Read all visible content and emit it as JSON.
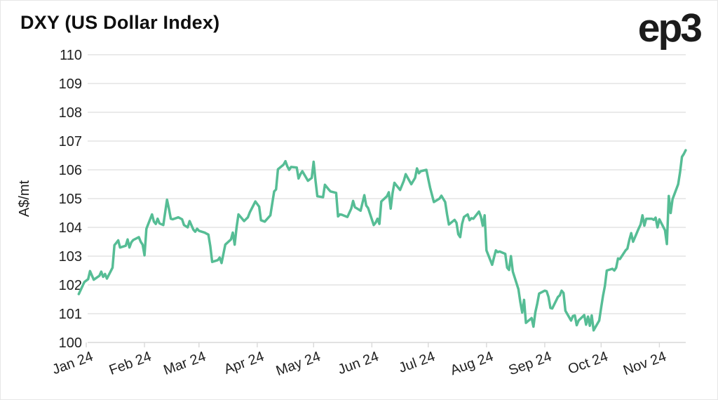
{
  "header": {
    "title": "DXY (US Dollar Index)",
    "logo": "ep3"
  },
  "colors": {
    "line": "#56bd95",
    "gridline": "#e3e3e3",
    "axis": "#d9d9d9",
    "text": "#1f1f1f"
  },
  "chart_data": {
    "type": "line",
    "title": "DXY (US Dollar Index)",
    "xlabel": "",
    "ylabel": "A$/mt",
    "ylim": [
      100,
      110
    ],
    "grid": "horizontal",
    "legend": "none",
    "y_ticks": [
      100,
      101,
      102,
      103,
      104,
      105,
      106,
      107,
      108,
      109,
      110
    ],
    "x_ticks": [
      {
        "label": "Jan 24",
        "day": 0
      },
      {
        "label": "Feb 24",
        "day": 31
      },
      {
        "label": "Mar 24",
        "day": 60
      },
      {
        "label": "Apr 24",
        "day": 91
      },
      {
        "label": "May 24",
        "day": 121
      },
      {
        "label": "Jun 24",
        "day": 152
      },
      {
        "label": "Jul 24",
        "day": 182
      },
      {
        "label": "Aug 24",
        "day": 213
      },
      {
        "label": "Sep 24",
        "day": 244
      },
      {
        "label": "Oct 24",
        "day": 274
      },
      {
        "label": "Nov 24",
        "day": 305
      }
    ],
    "series": [
      {
        "name": "DXY",
        "color": "#56bd95",
        "points": [
          [
            -4,
            101.68
          ],
          [
            -1,
            102.1
          ],
          [
            1,
            102.2
          ],
          [
            2,
            102.48
          ],
          [
            4,
            102.18
          ],
          [
            7,
            102.32
          ],
          [
            8,
            102.46
          ],
          [
            9,
            102.28
          ],
          [
            10,
            102.38
          ],
          [
            11,
            102.22
          ],
          [
            14,
            102.6
          ],
          [
            15,
            103.38
          ],
          [
            16,
            103.46
          ],
          [
            17,
            103.55
          ],
          [
            18,
            103.3
          ],
          [
            21,
            103.36
          ],
          [
            22,
            103.58
          ],
          [
            23,
            103.3
          ],
          [
            24,
            103.48
          ],
          [
            25,
            103.56
          ],
          [
            28,
            103.66
          ],
          [
            29,
            103.5
          ],
          [
            30,
            103.4
          ],
          [
            31,
            103.03
          ],
          [
            32,
            103.95
          ],
          [
            35,
            104.45
          ],
          [
            36,
            104.2
          ],
          [
            37,
            104.12
          ],
          [
            38,
            104.3
          ],
          [
            39,
            104.14
          ],
          [
            41,
            104.08
          ],
          [
            43,
            104.96
          ],
          [
            44,
            104.65
          ],
          [
            45,
            104.3
          ],
          [
            46,
            104.28
          ],
          [
            49,
            104.35
          ],
          [
            51,
            104.28
          ],
          [
            52,
            104.08
          ],
          [
            54,
            104.0
          ],
          [
            55,
            104.22
          ],
          [
            57,
            103.92
          ],
          [
            58,
            103.85
          ],
          [
            59,
            103.95
          ],
          [
            60,
            103.88
          ],
          [
            63,
            103.82
          ],
          [
            65,
            103.75
          ],
          [
            66,
            103.35
          ],
          [
            67,
            102.8
          ],
          [
            70,
            102.86
          ],
          [
            71,
            102.95
          ],
          [
            72,
            102.76
          ],
          [
            74,
            103.4
          ],
          [
            77,
            103.58
          ],
          [
            78,
            103.82
          ],
          [
            79,
            103.4
          ],
          [
            80,
            104.0
          ],
          [
            81,
            104.45
          ],
          [
            84,
            104.22
          ],
          [
            86,
            104.35
          ],
          [
            87,
            104.52
          ],
          [
            90,
            104.9
          ],
          [
            92,
            104.72
          ],
          [
            93,
            104.25
          ],
          [
            95,
            104.2
          ],
          [
            98,
            104.42
          ],
          [
            100,
            105.25
          ],
          [
            101,
            105.32
          ],
          [
            102,
            106.02
          ],
          [
            105,
            106.18
          ],
          [
            106,
            106.3
          ],
          [
            107,
            106.12
          ],
          [
            108,
            106.0
          ],
          [
            109,
            106.1
          ],
          [
            112,
            106.08
          ],
          [
            113,
            105.7
          ],
          [
            114,
            105.85
          ],
          [
            115,
            105.95
          ],
          [
            118,
            105.62
          ],
          [
            120,
            105.72
          ],
          [
            121,
            106.28
          ],
          [
            122,
            105.62
          ],
          [
            123,
            105.08
          ],
          [
            126,
            105.05
          ],
          [
            127,
            105.48
          ],
          [
            129,
            105.32
          ],
          [
            130,
            105.25
          ],
          [
            133,
            105.2
          ],
          [
            134,
            104.38
          ],
          [
            135,
            104.45
          ],
          [
            136,
            104.44
          ],
          [
            139,
            104.36
          ],
          [
            141,
            104.65
          ],
          [
            142,
            104.92
          ],
          [
            143,
            104.7
          ],
          [
            146,
            104.58
          ],
          [
            148,
            105.12
          ],
          [
            149,
            104.76
          ],
          [
            150,
            104.67
          ],
          [
            153,
            104.08
          ],
          [
            154,
            104.16
          ],
          [
            155,
            104.3
          ],
          [
            156,
            104.12
          ],
          [
            157,
            104.9
          ],
          [
            160,
            105.08
          ],
          [
            161,
            105.22
          ],
          [
            162,
            104.65
          ],
          [
            163,
            105.18
          ],
          [
            164,
            105.55
          ],
          [
            167,
            105.3
          ],
          [
            169,
            105.62
          ],
          [
            170,
            105.85
          ],
          [
            173,
            105.5
          ],
          [
            175,
            105.72
          ],
          [
            176,
            106.05
          ],
          [
            177,
            105.88
          ],
          [
            178,
            105.95
          ],
          [
            181,
            106.0
          ],
          [
            182,
            105.68
          ],
          [
            183,
            105.38
          ],
          [
            185,
            104.88
          ],
          [
            188,
            105.0
          ],
          [
            189,
            105.1
          ],
          [
            191,
            104.88
          ],
          [
            192,
            104.45
          ],
          [
            193,
            104.1
          ],
          [
            196,
            104.26
          ],
          [
            197,
            104.16
          ],
          [
            198,
            103.76
          ],
          [
            199,
            103.66
          ],
          [
            200,
            104.12
          ],
          [
            201,
            104.36
          ],
          [
            203,
            104.45
          ],
          [
            204,
            104.25
          ],
          [
            205,
            104.32
          ],
          [
            206,
            104.3
          ],
          [
            209,
            104.55
          ],
          [
            210,
            104.38
          ],
          [
            211,
            104.06
          ],
          [
            212,
            104.42
          ],
          [
            213,
            103.2
          ],
          [
            216,
            102.7
          ],
          [
            217,
            102.96
          ],
          [
            218,
            103.2
          ],
          [
            219,
            103.14
          ],
          [
            220,
            103.16
          ],
          [
            223,
            103.08
          ],
          [
            224,
            102.6
          ],
          [
            225,
            102.52
          ],
          [
            226,
            103.0
          ],
          [
            227,
            102.46
          ],
          [
            230,
            101.85
          ],
          [
            231,
            101.4
          ],
          [
            232,
            101.04
          ],
          [
            233,
            101.48
          ],
          [
            234,
            100.68
          ],
          [
            237,
            100.85
          ],
          [
            238,
            100.55
          ],
          [
            239,
            101.05
          ],
          [
            240,
            101.35
          ],
          [
            241,
            101.7
          ],
          [
            244,
            101.8
          ],
          [
            245,
            101.78
          ],
          [
            246,
            101.58
          ],
          [
            247,
            101.2
          ],
          [
            248,
            101.18
          ],
          [
            251,
            101.58
          ],
          [
            252,
            101.64
          ],
          [
            253,
            101.8
          ],
          [
            254,
            101.72
          ],
          [
            255,
            101.1
          ],
          [
            258,
            100.76
          ],
          [
            259,
            100.92
          ],
          [
            260,
            100.94
          ],
          [
            261,
            100.6
          ],
          [
            262,
            100.76
          ],
          [
            265,
            100.95
          ],
          [
            266,
            100.62
          ],
          [
            267,
            100.9
          ],
          [
            268,
            100.58
          ],
          [
            269,
            100.94
          ],
          [
            270,
            100.42
          ],
          [
            273,
            100.76
          ],
          [
            274,
            101.2
          ],
          [
            275,
            101.62
          ],
          [
            276,
            101.96
          ],
          [
            277,
            102.5
          ],
          [
            280,
            102.56
          ],
          [
            281,
            102.5
          ],
          [
            282,
            102.6
          ],
          [
            283,
            102.92
          ],
          [
            284,
            102.9
          ],
          [
            287,
            103.2
          ],
          [
            288,
            103.26
          ],
          [
            289,
            103.56
          ],
          [
            290,
            103.8
          ],
          [
            291,
            103.5
          ],
          [
            294,
            103.96
          ],
          [
            295,
            104.1
          ],
          [
            296,
            104.42
          ],
          [
            297,
            104.06
          ],
          [
            298,
            104.3
          ],
          [
            301,
            104.3
          ],
          [
            302,
            104.26
          ],
          [
            303,
            104.34
          ],
          [
            304,
            104.0
          ],
          [
            305,
            104.28
          ],
          [
            308,
            103.9
          ],
          [
            309,
            103.42
          ],
          [
            310,
            105.09
          ],
          [
            311,
            104.5
          ],
          [
            312,
            104.98
          ],
          [
            315,
            105.5
          ],
          [
            316,
            105.92
          ],
          [
            317,
            106.45
          ],
          [
            318,
            106.55
          ],
          [
            319,
            106.68
          ]
        ]
      }
    ]
  }
}
